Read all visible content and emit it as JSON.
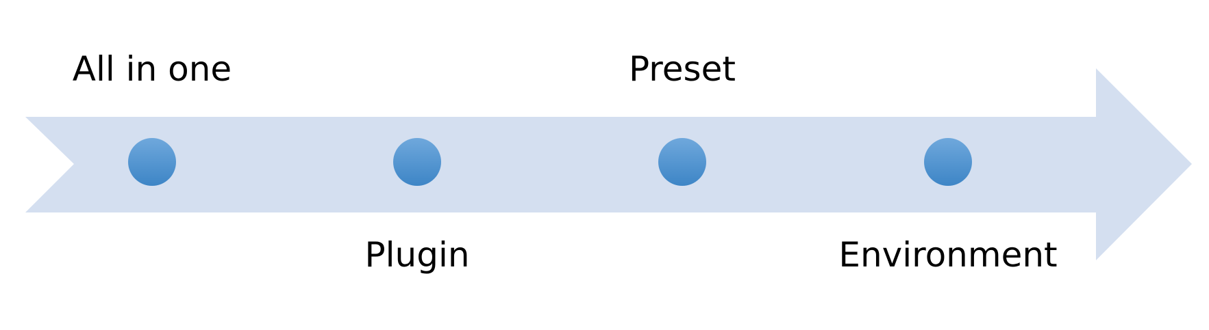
{
  "colors": {
    "arrow": "#d4dff0",
    "dot_top": "#6fa8dc",
    "dot_bottom": "#3d85c6",
    "text": "#000000"
  },
  "stages": [
    {
      "label": "All in one",
      "position": "above"
    },
    {
      "label": "Plugin",
      "position": "below"
    },
    {
      "label": "Preset",
      "position": "above"
    },
    {
      "label": "Environment",
      "position": "below"
    }
  ]
}
